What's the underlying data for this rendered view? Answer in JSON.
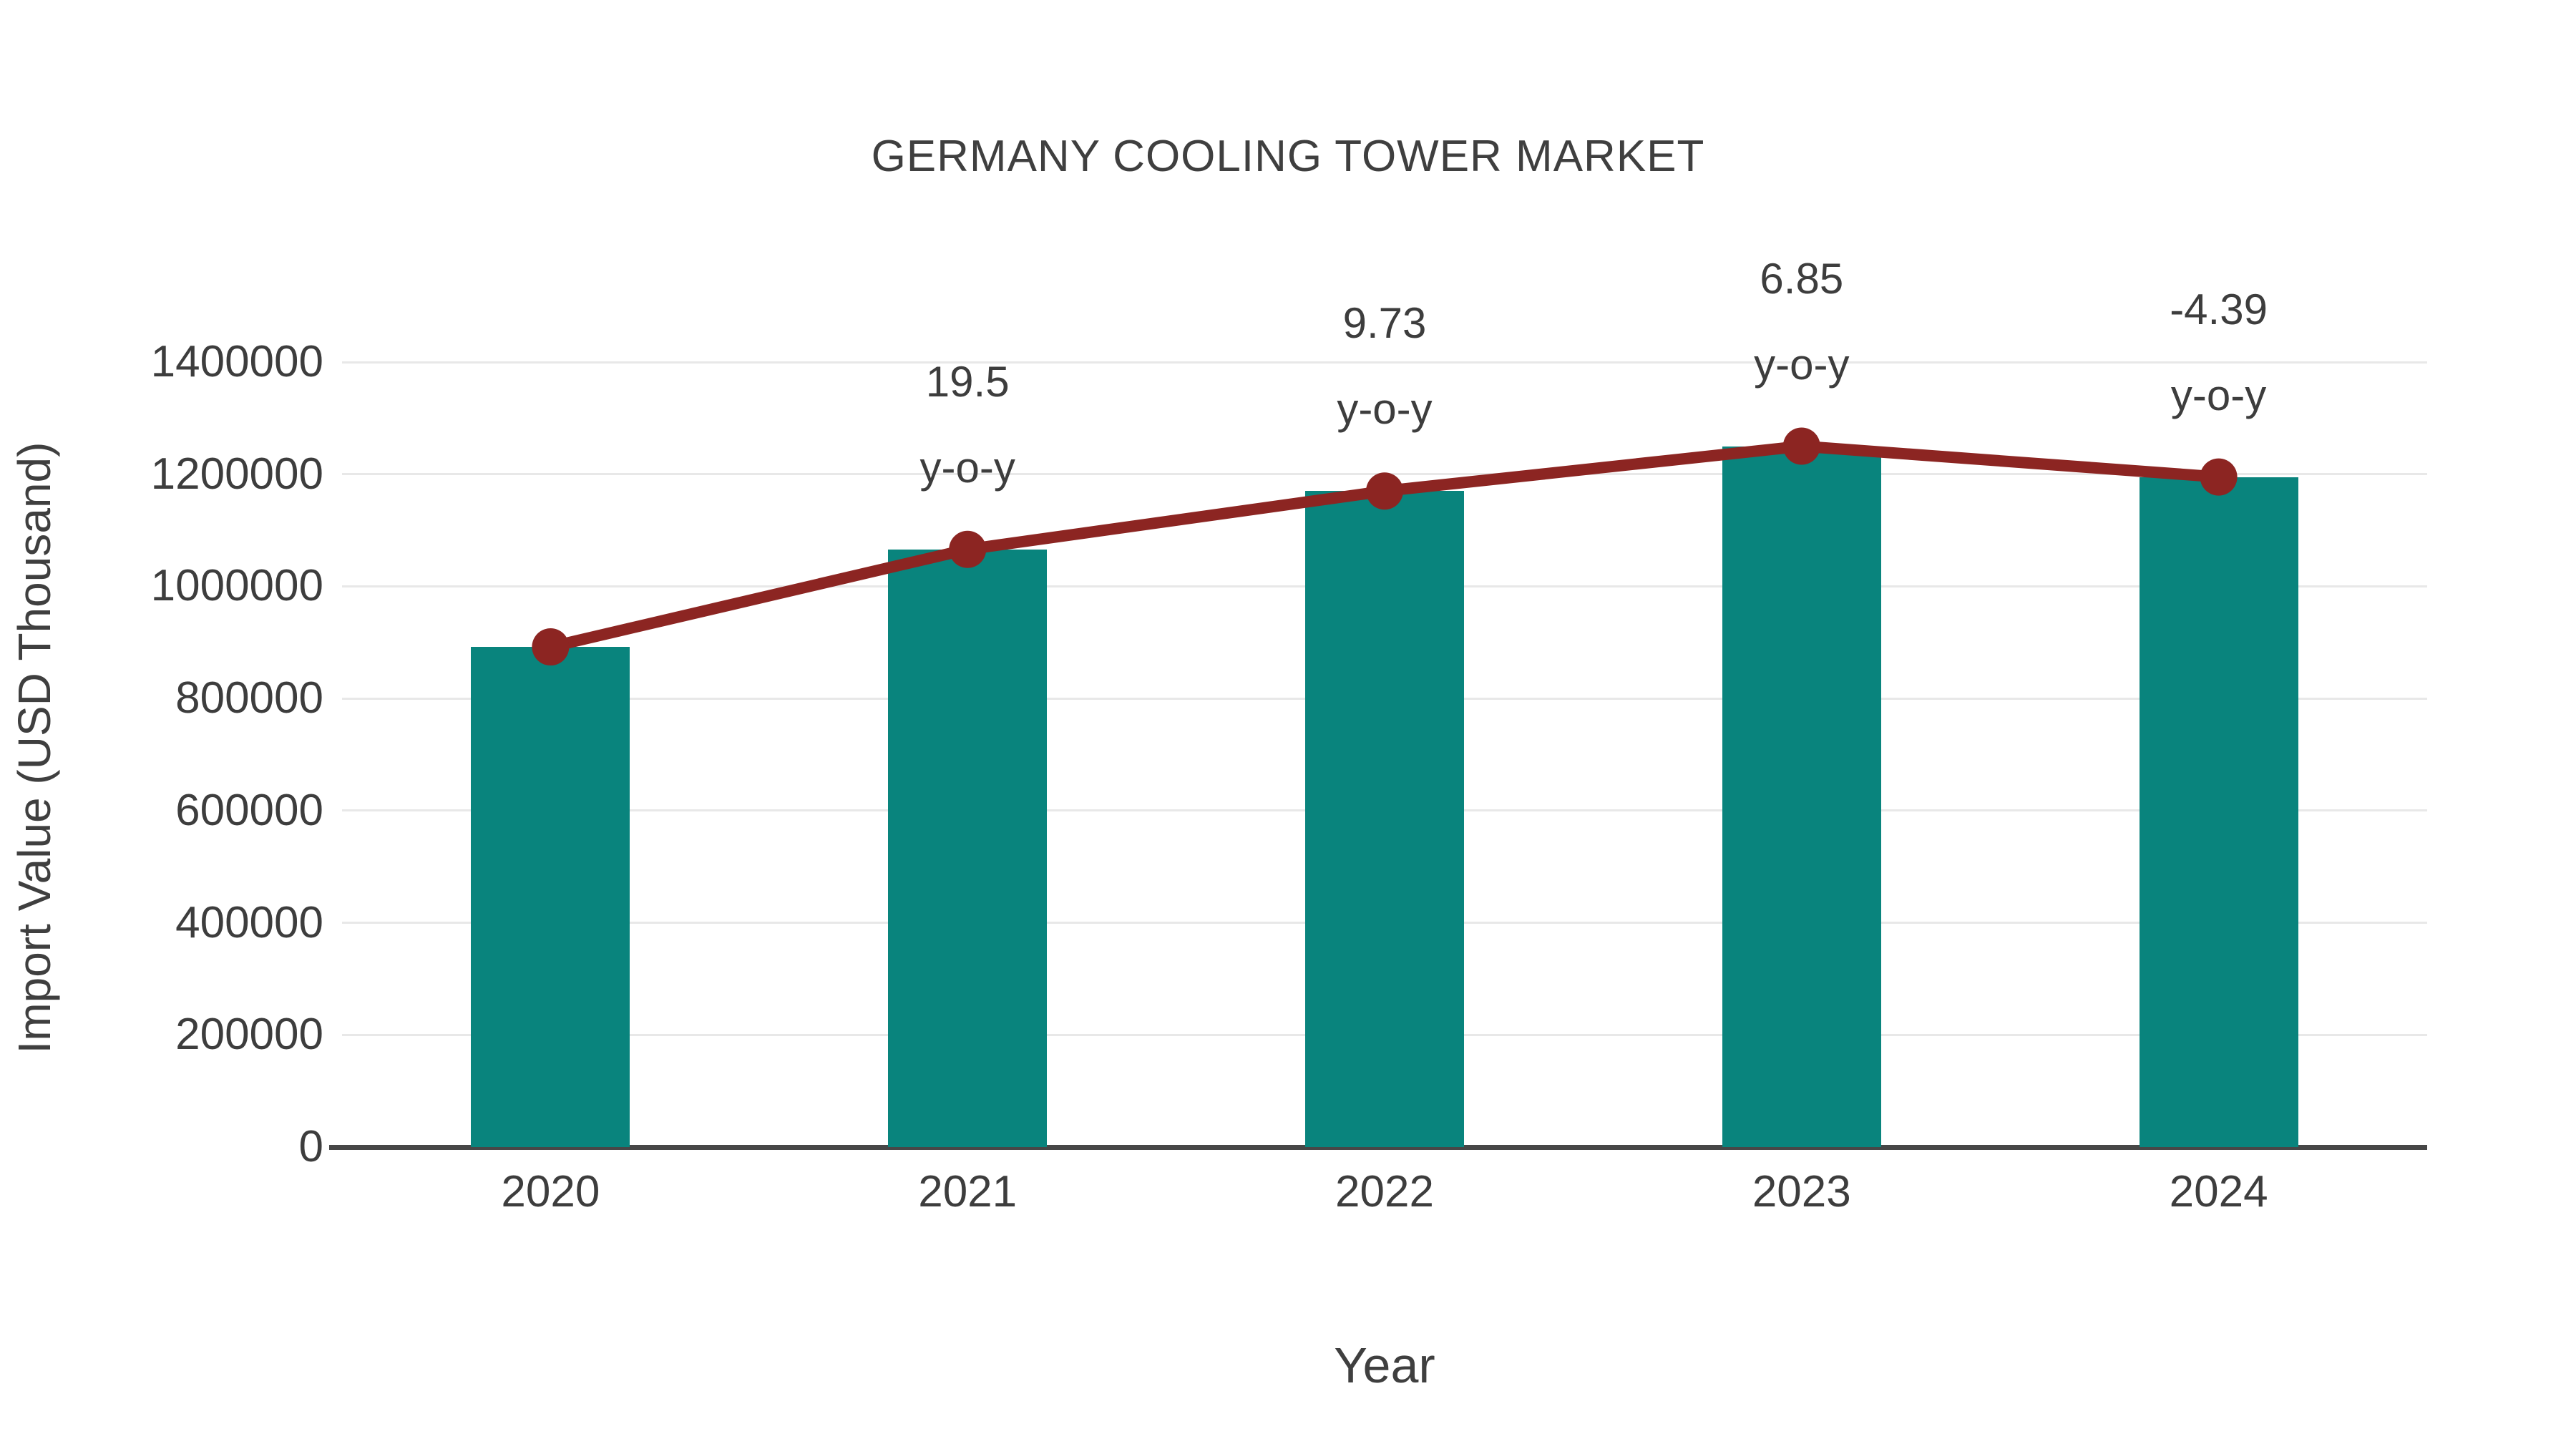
{
  "chart_data": {
    "type": "bar+line",
    "title": "GERMANY COOLING TOWER MARKET",
    "xlabel": "Year",
    "ylabel": "Import Value (USD Thousand)",
    "categories": [
      "2020",
      "2021",
      "2022",
      "2023",
      "2024"
    ],
    "series": [
      {
        "name": "import-value-bars",
        "type": "bar",
        "values": [
          892000,
          1066000,
          1170000,
          1250000,
          1195000
        ]
      },
      {
        "name": "yoy-growth-line",
        "type": "line",
        "values": [
          892000,
          1066000,
          1170000,
          1250000,
          1195000
        ],
        "point_labels": [
          "",
          "19.5",
          "9.73",
          "6.85",
          "-4.39"
        ],
        "label_suffix": "y-o-y"
      }
    ],
    "yoy_percent": [
      null,
      19.5,
      9.73,
      6.85,
      -4.39
    ],
    "ylim": [
      0,
      1400000
    ],
    "yticks": [
      0,
      200000,
      400000,
      600000,
      800000,
      1000000,
      1200000,
      1400000
    ],
    "grid": true,
    "legend_position": "none"
  },
  "colors": {
    "bar": "#09847d",
    "line": "#8c2522",
    "marker": "#8c2522",
    "grid": "#e8e8e8",
    "axis": "#474747",
    "text": "#3d3d3d",
    "title": "#3f3f3f"
  }
}
